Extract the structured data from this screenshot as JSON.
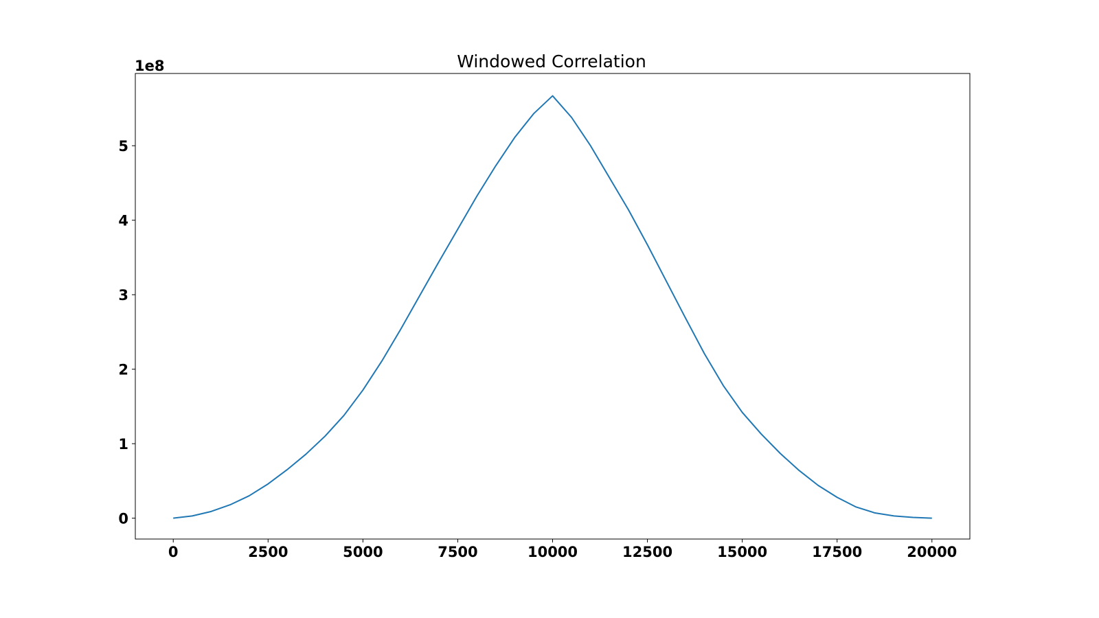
{
  "chart_data": {
    "type": "line",
    "title": "Windowed Correlation",
    "xlabel": "",
    "ylabel": "",
    "y_offset_label": "1e8",
    "xlim": [
      -1000,
      21000
    ],
    "ylim": [
      -0.28,
      5.97
    ],
    "grid": false,
    "x_ticks": [
      0,
      2500,
      5000,
      7500,
      10000,
      12500,
      15000,
      17500,
      20000
    ],
    "x_tick_labels": [
      "0",
      "2500",
      "5000",
      "7500",
      "10000",
      "12500",
      "15000",
      "17500",
      "20000"
    ],
    "y_ticks": [
      0,
      1,
      2,
      3,
      4,
      5
    ],
    "y_tick_labels": [
      "0",
      "1",
      "2",
      "3",
      "4",
      "5"
    ],
    "series": [
      {
        "color": "#1f77b4",
        "x": [
          0,
          500,
          1000,
          1500,
          2000,
          2500,
          3000,
          3500,
          4000,
          4500,
          5000,
          5500,
          6000,
          6500,
          7000,
          7500,
          8000,
          8500,
          9000,
          9500,
          10000,
          10500,
          11000,
          11500,
          12000,
          12500,
          13000,
          13500,
          14000,
          14500,
          15000,
          15500,
          16000,
          16500,
          17000,
          17500,
          18000,
          18500,
          19000,
          19500,
          20000
        ],
        "y": [
          0.0,
          0.03,
          0.09,
          0.18,
          0.3,
          0.46,
          0.65,
          0.86,
          1.1,
          1.38,
          1.72,
          2.11,
          2.54,
          2.99,
          3.44,
          3.88,
          4.32,
          4.73,
          5.11,
          5.43,
          5.67,
          5.38,
          5.0,
          4.57,
          4.14,
          3.67,
          3.18,
          2.69,
          2.21,
          1.78,
          1.42,
          1.13,
          0.87,
          0.64,
          0.44,
          0.28,
          0.15,
          0.07,
          0.03,
          0.01,
          0.0
        ]
      }
    ]
  }
}
